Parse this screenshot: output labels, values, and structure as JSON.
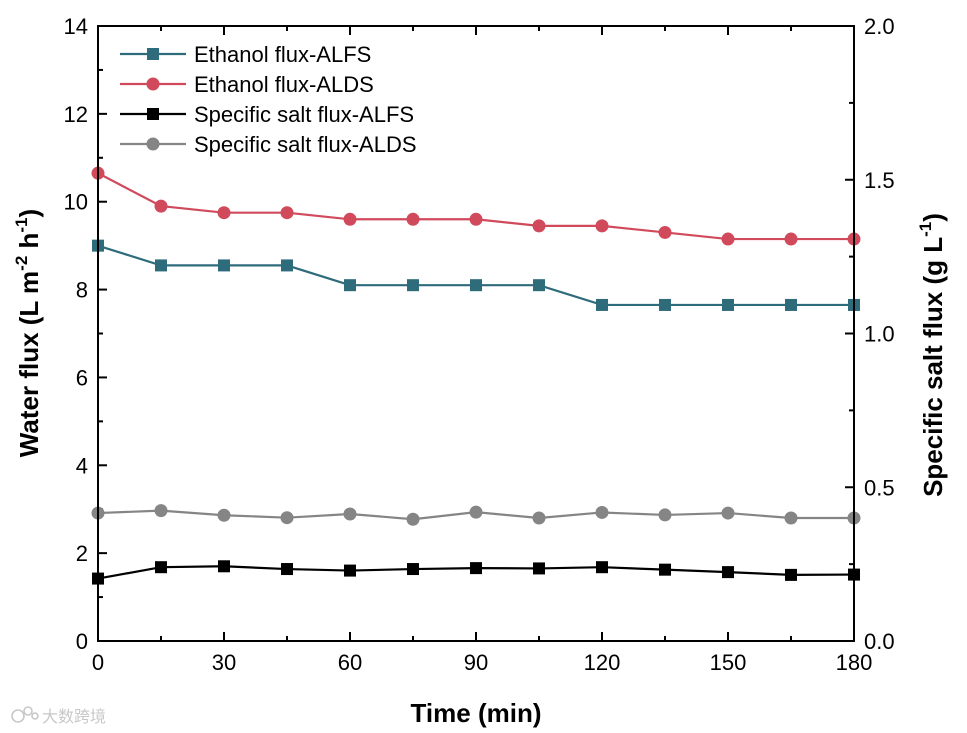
{
  "chart_data": {
    "type": "line",
    "x": [
      0,
      15,
      30,
      45,
      60,
      75,
      90,
      105,
      120,
      135,
      150,
      165,
      180
    ],
    "xlabel": "Time (min)",
    "xlim": [
      0,
      180
    ],
    "xticks": [
      "0",
      "30",
      "60",
      "90",
      "120",
      "150",
      "180"
    ],
    "ylabel_left": {
      "main": "Water flux (L m",
      "sup1": "-2",
      "mid": " h",
      "sup2": "-1",
      "end": ")"
    },
    "ylim_left": [
      0,
      14
    ],
    "yticks_left": [
      "0",
      "2",
      "4",
      "6",
      "8",
      "10",
      "12",
      "14"
    ],
    "ylabel_right": {
      "main": "Specific salt flux (g L",
      "sup": "-1",
      "end": ")"
    },
    "ylim_right": [
      0,
      2.0
    ],
    "yticks_right": [
      "0.0",
      "0.5",
      "1.0",
      "1.5",
      "2.0"
    ],
    "legend_position": "top-left",
    "series": [
      {
        "name": "Ethanol flux-ALFS",
        "axis": "left",
        "marker": "square",
        "color": "#2e6b7b",
        "values": [
          9.0,
          8.55,
          8.55,
          8.55,
          8.1,
          8.1,
          8.1,
          8.1,
          7.65,
          7.65,
          7.65,
          7.65,
          7.65
        ]
      },
      {
        "name": "Ethanol flux-ALDS",
        "axis": "left",
        "marker": "circle",
        "color": "#d14a5c",
        "values": [
          10.65,
          9.9,
          9.75,
          9.75,
          9.6,
          9.6,
          9.6,
          9.45,
          9.45,
          9.3,
          9.15,
          9.15,
          9.15
        ]
      },
      {
        "name": "Specific salt flux-ALFS",
        "axis": "right",
        "marker": "square",
        "color": "#000000",
        "values": [
          0.203,
          0.24,
          0.243,
          0.234,
          0.229,
          0.234,
          0.237,
          0.236,
          0.24,
          0.232,
          0.224,
          0.215,
          0.216
        ]
      },
      {
        "name": "Specific salt flux-ALDS",
        "axis": "right",
        "marker": "circle",
        "color": "#858585",
        "values": [
          0.416,
          0.424,
          0.409,
          0.401,
          0.413,
          0.396,
          0.419,
          0.4,
          0.418,
          0.41,
          0.416,
          0.4,
          0.4
        ]
      }
    ]
  },
  "watermark": {
    "text": "大数跨境",
    "icon": "logo-icon"
  }
}
